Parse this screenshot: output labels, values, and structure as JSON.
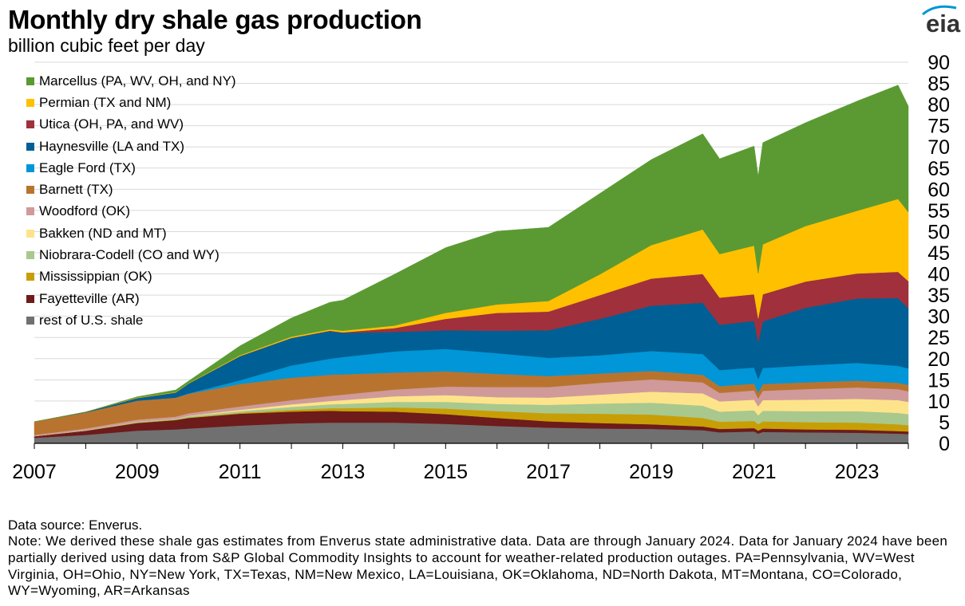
{
  "header": {
    "title": "Monthly dry shale gas production",
    "subtitle": "billion cubic feet per day",
    "logo_text": "eia"
  },
  "colors": {
    "marcellus": "#5b9a33",
    "permian": "#ffc000",
    "utica": "#a0303c",
    "haynesville": "#005f94",
    "eagle_ford": "#0096d7",
    "barnett": "#b8742f",
    "woodford": "#d09a9a",
    "bakken": "#fde48a",
    "niobrara": "#a8c88e",
    "mississippian": "#c89e06",
    "fayetteville": "#6e1b1b",
    "rest": "#707070"
  },
  "chart_data": {
    "type": "area",
    "stacked": true,
    "title": "Monthly dry shale gas production",
    "subtitle": "billion cubic feet per day",
    "xlabel": "",
    "ylabel": "",
    "x_range": [
      2007.0,
      2024.0
    ],
    "ylim": [
      0,
      90
    ],
    "y_ticks": [
      0,
      5,
      10,
      15,
      20,
      25,
      30,
      35,
      40,
      45,
      50,
      55,
      60,
      65,
      70,
      75,
      80,
      85,
      90
    ],
    "y_axis_side": "right",
    "x_tick_labels": [
      "2007",
      "2009",
      "2011",
      "2013",
      "2015",
      "2017",
      "2019",
      "2021",
      "2023"
    ],
    "grid": "horizontal",
    "legend_position": "top-left",
    "x": [
      2007.0,
      2008.0,
      2009.0,
      2009.75,
      2010.0,
      2011.0,
      2012.0,
      2012.75,
      2013.0,
      2014.0,
      2015.0,
      2016.0,
      2017.0,
      2018.0,
      2019.0,
      2020.0,
      2020.33,
      2021.0,
      2021.08,
      2021.17,
      2022.0,
      2023.0,
      2023.8,
      2024.0
    ],
    "series": [
      {
        "name": "rest of U.S. shale",
        "color": "#707070",
        "values": [
          1.3,
          2.0,
          3.0,
          3.3,
          3.5,
          4.2,
          4.7,
          4.9,
          4.9,
          4.9,
          4.6,
          4.1,
          3.7,
          3.5,
          3.4,
          3.1,
          2.6,
          2.8,
          2.3,
          2.7,
          2.6,
          2.5,
          2.3,
          2.2
        ]
      },
      {
        "name": "Fayetteville (AR)",
        "color": "#6e1b1b",
        "values": [
          0.4,
          1.0,
          1.8,
          2.2,
          2.5,
          2.8,
          2.8,
          2.8,
          2.7,
          2.6,
          2.3,
          1.9,
          1.5,
          1.3,
          1.1,
          0.9,
          0.8,
          0.8,
          0.7,
          0.8,
          0.7,
          0.7,
          0.6,
          0.6
        ]
      },
      {
        "name": "Mississippian (OK)",
        "color": "#c89e06",
        "values": [
          0.0,
          0.0,
          0.1,
          0.1,
          0.1,
          0.2,
          0.4,
          0.6,
          0.7,
          1.0,
          1.3,
          1.6,
          1.9,
          2.2,
          2.3,
          2.0,
          1.7,
          1.7,
          1.5,
          1.7,
          1.7,
          1.7,
          1.6,
          1.5
        ]
      },
      {
        "name": "Niobrara-Codell (CO and WY)",
        "color": "#a8c88e",
        "values": [
          0.0,
          0.1,
          0.2,
          0.2,
          0.3,
          0.4,
          0.7,
          0.9,
          1.0,
          1.3,
          1.6,
          1.7,
          2.0,
          2.4,
          2.8,
          2.9,
          2.4,
          2.5,
          2.1,
          2.5,
          2.6,
          2.7,
          2.7,
          2.6
        ]
      },
      {
        "name": "Bakken (ND and MT)",
        "color": "#fde48a",
        "values": [
          0.0,
          0.0,
          0.0,
          0.0,
          0.1,
          0.3,
          0.6,
          0.8,
          0.9,
          1.3,
          1.6,
          1.6,
          1.7,
          2.1,
          2.6,
          2.9,
          2.4,
          2.5,
          2.1,
          2.5,
          2.7,
          2.9,
          3.0,
          2.9
        ]
      },
      {
        "name": "Woodford (OK)",
        "color": "#d09a9a",
        "values": [
          0.3,
          0.4,
          0.5,
          0.5,
          0.6,
          0.8,
          1.0,
          1.2,
          1.3,
          1.6,
          2.0,
          2.4,
          2.5,
          2.8,
          2.9,
          2.6,
          2.0,
          2.2,
          1.9,
          2.2,
          2.5,
          2.7,
          2.6,
          2.5
        ]
      },
      {
        "name": "Barnett (TX)",
        "color": "#b8742f",
        "values": [
          3.1,
          3.8,
          4.5,
          4.5,
          4.6,
          5.3,
          5.3,
          5.0,
          4.8,
          4.0,
          3.6,
          3.1,
          2.6,
          2.2,
          2.0,
          1.8,
          1.6,
          1.6,
          1.4,
          1.6,
          1.6,
          1.6,
          1.5,
          1.5
        ]
      },
      {
        "name": "Eagle Ford (TX)",
        "color": "#0096d7",
        "values": [
          0.0,
          0.0,
          0.0,
          0.0,
          0.1,
          0.9,
          2.9,
          3.8,
          4.1,
          5.0,
          5.3,
          4.9,
          4.3,
          4.3,
          4.7,
          4.9,
          3.8,
          3.8,
          3.2,
          3.8,
          4.0,
          4.2,
          4.0,
          3.9
        ]
      },
      {
        "name": "Haynesville (LA and TX)",
        "color": "#005f94",
        "values": [
          0.0,
          0.1,
          0.6,
          1.2,
          2.3,
          5.7,
          6.5,
          6.5,
          5.7,
          4.6,
          4.4,
          5.3,
          6.5,
          8.6,
          10.7,
          12.1,
          10.7,
          11.0,
          8.7,
          11.0,
          13.6,
          15.2,
          16.0,
          14.2
        ]
      },
      {
        "name": "Utica (OH, PA, and WV)",
        "color": "#a0303c",
        "values": [
          0.0,
          0.0,
          0.0,
          0.0,
          0.0,
          0.0,
          0.0,
          0.1,
          0.1,
          0.9,
          2.7,
          4.2,
          4.4,
          5.6,
          6.4,
          6.8,
          6.4,
          6.3,
          5.6,
          6.4,
          6.2,
          5.9,
          6.2,
          6.4
        ]
      },
      {
        "name": "Permian (TX and NM)",
        "color": "#ffc000",
        "values": [
          0.0,
          0.0,
          0.1,
          0.1,
          0.1,
          0.2,
          0.3,
          0.3,
          0.4,
          0.6,
          1.4,
          2.0,
          2.5,
          4.9,
          7.9,
          10.5,
          10.3,
          11.5,
          10.6,
          11.8,
          13.1,
          14.8,
          17.2,
          16.3
        ]
      },
      {
        "name": "Marcellus (PA, WV, OH, and NY)",
        "color": "#5b9a33",
        "values": [
          0.0,
          0.0,
          0.2,
          0.5,
          0.5,
          2.2,
          4.4,
          6.4,
          7.2,
          12.1,
          15.4,
          17.3,
          17.4,
          19.1,
          20.2,
          22.6,
          22.5,
          23.5,
          23.0,
          24.0,
          24.4,
          25.9,
          26.9,
          25.0
        ]
      }
    ]
  },
  "footer": {
    "source": "Data source: Enverus.",
    "note": "Note: We derived these shale gas estimates from Enverus state administrative data. Data are through January 2024. Data for January 2024 have been partially derived using data from S&P Global Commodity Insights to account for weather-related production outages. PA=Pennsylvania, WV=West Virginia, OH=Ohio, NY=New York, TX=Texas, NM=New Mexico, LA=Louisiana, OK=Oklahoma, ND=North Dakota, MT=Montana, CO=Colorado, WY=Wyoming, AR=Arkansas"
  }
}
